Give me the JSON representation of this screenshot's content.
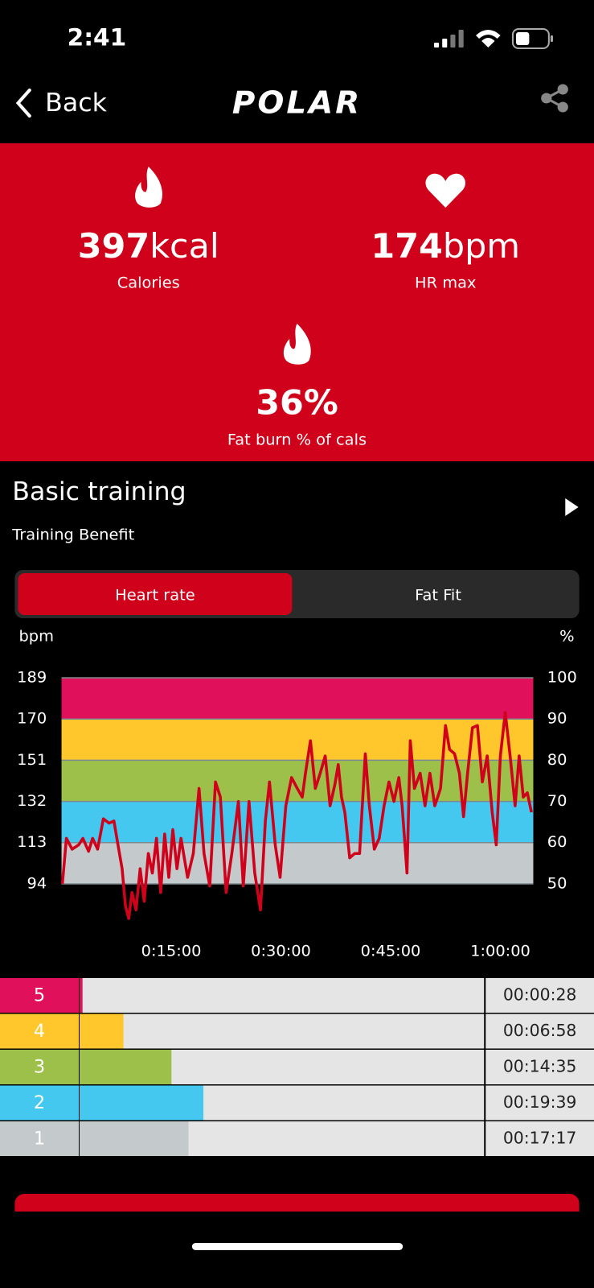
{
  "status_bar": {
    "time": "2:41"
  },
  "nav": {
    "back": "Back",
    "logo": "POLAR"
  },
  "stats": [
    {
      "value": "397",
      "unit": "kcal",
      "label": "Calories"
    },
    {
      "value": "174",
      "unit": "bpm",
      "label": "HR max"
    },
    {
      "value": "36%",
      "label": "Fat burn % of cals"
    }
  ],
  "training": {
    "title": "Basic training",
    "subtitle": "Training Benefit"
  },
  "tabs": [
    "Heart rate",
    "Fat Fit"
  ],
  "chart_data": {
    "type": "line",
    "y_label": "bpm",
    "y2_label": "%",
    "x": [
      7,
      40,
      87,
      141,
      175,
      222,
      255,
      296,
      343,
      390,
      430,
      463,
      497,
      524,
      551,
      578,
      611,
      645,
      678,
      712,
      745,
      779,
      813,
      846,
      880,
      913,
      947,
      980,
      1034,
      1081,
      1128,
      1169,
      1216,
      1263,
      1303,
      1350,
      1397,
      1451,
      1491,
      1538,
      1585,
      1632,
      1672,
      1706,
      1753,
      1793,
      1840,
      1887,
      1934,
      1975,
      2001,
      2042,
      2082,
      2122,
      2163,
      2203,
      2243,
      2270,
      2297,
      2324,
      2364,
      2404,
      2445,
      2492,
      2525,
      2566,
      2606,
      2646,
      2686,
      2727,
      2767,
      2794,
      2834,
      2861,
      2895,
      2942,
      2982,
      3022,
      3062,
      3109,
      3150,
      3183,
      3224,
      3264,
      3298,
      3331,
      3371,
      3412,
      3452,
      3492,
      3533,
      3566,
      3600,
      3640,
      3680,
      3721,
      3754,
      3788,
      3821,
      3855
    ],
    "series": [
      {
        "color": "#d0021b",
        "values": [
          94,
          115,
          110,
          112,
          115,
          109,
          115,
          110,
          124,
          122,
          123,
          112,
          101,
          84,
          78,
          90,
          82,
          101,
          86,
          108,
          99,
          115,
          90,
          117,
          97,
          119,
          101,
          115,
          97,
          108,
          138,
          108,
          93,
          141,
          134,
          90,
          108,
          132,
          93,
          132,
          99,
          82,
          123,
          141,
          112,
          97,
          130,
          143,
          138,
          134,
          145,
          160,
          138,
          145,
          153,
          130,
          140,
          149,
          134,
          127,
          106,
          108,
          108,
          154,
          130,
          110,
          115,
          130,
          141,
          132,
          143,
          130,
          99,
          160,
          138,
          145,
          130,
          145,
          130,
          138,
          167,
          156,
          154,
          145,
          125,
          145,
          166,
          167,
          141,
          153,
          127,
          112,
          153,
          173,
          153,
          130,
          153,
          134,
          136,
          127
        ]
      }
    ],
    "xlim": [
      0,
      3870
    ],
    "xticks": [
      {
        "value": 900,
        "label": "0:15:00"
      },
      {
        "value": 1800,
        "label": "0:30:00"
      },
      {
        "value": 2700,
        "label": "0:45:00"
      },
      {
        "value": 3600,
        "label": "1:00:00"
      }
    ],
    "ylim": [
      94,
      189
    ],
    "yticks": [
      94,
      113,
      132,
      151,
      170,
      189
    ],
    "y2lim": [
      50,
      100
    ],
    "y2ticks": [
      50,
      60,
      70,
      80,
      90,
      100
    ],
    "band_colors": [
      "#c4cacb",
      "#44c8ef",
      "#9dc04b",
      "#ffc72c",
      "#e0105a"
    ]
  },
  "zones": {
    "labels": [
      "5",
      "4",
      "3",
      "2",
      "1"
    ],
    "values": [
      28,
      418,
      875,
      1179,
      1037
    ],
    "value_labels": [
      "00:00:28",
      "00:06:58",
      "00:14:35",
      "00:19:39",
      "00:17:17"
    ],
    "colors": [
      "#e0105a",
      "#ffc72c",
      "#9dc04b",
      "#44c8ef",
      "#c4cacb"
    ]
  }
}
